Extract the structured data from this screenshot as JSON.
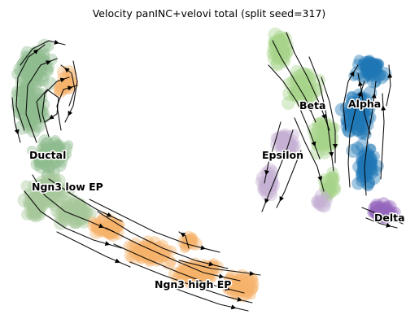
{
  "chart_data": {
    "type": "scatter",
    "title": "Velocity panINC+velovi total (split seed=317)",
    "axes_visible": false,
    "grid": false,
    "legend": "none (clusters labelled on data)",
    "overlay": "velocity streamlines with arrowheads",
    "clusters": [
      {
        "name": "Ductal",
        "color": "#8fbc8f"
      },
      {
        "name": "Ngn3 low EP",
        "color": "#a7c79c"
      },
      {
        "name": "Ngn3 high EP",
        "color": "#f6b26b"
      },
      {
        "name": "Beta",
        "color": "#a6d38a"
      },
      {
        "name": "Alpha",
        "color": "#1f77b4"
      },
      {
        "name": "Epsilon",
        "color": "#c5b0d5"
      },
      {
        "name": "Delta",
        "color": "#9467bd"
      }
    ]
  },
  "labels": {
    "ductal": "Ductal",
    "ngn3_low": "Ngn3 low EP",
    "ngn3_high": "Ngn3 high EP",
    "beta": "Beta",
    "alpha": "Alpha",
    "epsilon": "Epsilon",
    "delta": "Delta"
  }
}
